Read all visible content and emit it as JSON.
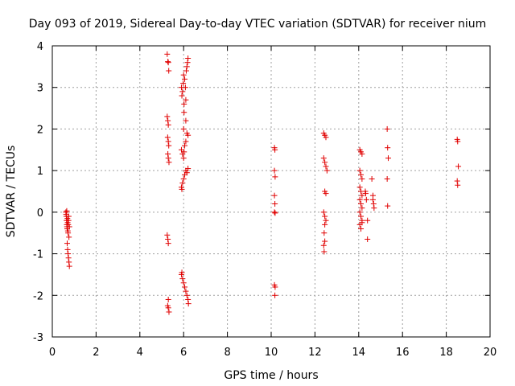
{
  "chart_data": {
    "type": "scatter",
    "title": "Day 093 of 2019, Sidereal Day-to-day VTEC variation (SDTVAR) for receiver nium",
    "xlabel": "GPS time / hours",
    "ylabel": "SDTVAR / TECUs",
    "xlim": [
      0,
      20
    ],
    "ylim": [
      -3,
      4
    ],
    "xticks": [
      0,
      2,
      4,
      6,
      8,
      10,
      12,
      14,
      16,
      18,
      20
    ],
    "yticks": [
      -3,
      -2,
      -1,
      0,
      1,
      2,
      3,
      4
    ],
    "xtick_labels": [
      "0",
      "2",
      "4",
      "6",
      "8",
      "10",
      "12",
      "14",
      "16",
      "18",
      "20"
    ],
    "ytick_labels": [
      "-3",
      "-2",
      "-1",
      "0",
      "1",
      "2",
      "3",
      "4"
    ],
    "grid": true,
    "marker": "+",
    "color": "#e00000",
    "series": [
      {
        "name": "SDTVAR",
        "points": [
          [
            0.62,
            0.0
          ],
          [
            0.63,
            -0.05
          ],
          [
            0.64,
            -0.1
          ],
          [
            0.65,
            -0.2
          ],
          [
            0.66,
            -0.3
          ],
          [
            0.67,
            -0.35
          ],
          [
            0.68,
            -0.4
          ],
          [
            0.69,
            -0.15
          ],
          [
            0.7,
            -0.25
          ],
          [
            0.71,
            -0.45
          ],
          [
            0.72,
            -0.5
          ],
          [
            0.73,
            -0.3
          ],
          [
            0.74,
            -0.2
          ],
          [
            0.75,
            -0.1
          ],
          [
            0.76,
            -0.6
          ],
          [
            0.68,
            -0.75
          ],
          [
            0.7,
            -0.9
          ],
          [
            0.72,
            -1.0
          ],
          [
            0.74,
            -1.1
          ],
          [
            0.76,
            -1.2
          ],
          [
            0.78,
            -1.3
          ],
          [
            0.66,
            0.03
          ],
          [
            0.78,
            -0.35
          ],
          [
            5.25,
            3.8
          ],
          [
            5.28,
            3.62
          ],
          [
            5.3,
            3.6
          ],
          [
            5.32,
            3.4
          ],
          [
            5.25,
            2.3
          ],
          [
            5.28,
            2.2
          ],
          [
            5.3,
            2.1
          ],
          [
            5.27,
            1.8
          ],
          [
            5.3,
            1.7
          ],
          [
            5.32,
            1.6
          ],
          [
            5.28,
            1.4
          ],
          [
            5.3,
            1.3
          ],
          [
            5.33,
            1.2
          ],
          [
            5.25,
            -0.55
          ],
          [
            5.28,
            -0.65
          ],
          [
            5.3,
            -0.75
          ],
          [
            5.3,
            -2.1
          ],
          [
            5.27,
            -2.25
          ],
          [
            5.3,
            -2.3
          ],
          [
            5.33,
            -2.4
          ],
          [
            5.9,
            3.0
          ],
          [
            5.92,
            2.8
          ],
          [
            5.95,
            2.9
          ],
          [
            5.98,
            3.1
          ],
          [
            6.0,
            3.3
          ],
          [
            6.02,
            2.6
          ],
          [
            6.05,
            3.2
          ],
          [
            6.08,
            3.0
          ],
          [
            6.1,
            2.7
          ],
          [
            6.12,
            3.4
          ],
          [
            6.15,
            3.5
          ],
          [
            6.18,
            3.6
          ],
          [
            6.2,
            3.7
          ],
          [
            6.02,
            2.4
          ],
          [
            6.0,
            2.0
          ],
          [
            6.1,
            2.2
          ],
          [
            5.9,
            1.5
          ],
          [
            5.95,
            1.4
          ],
          [
            6.0,
            1.3
          ],
          [
            6.05,
            1.6
          ],
          [
            6.1,
            1.7
          ],
          [
            6.15,
            1.9
          ],
          [
            6.2,
            1.85
          ],
          [
            6.02,
            1.45
          ],
          [
            5.9,
            0.6
          ],
          [
            5.95,
            0.7
          ],
          [
            6.0,
            0.8
          ],
          [
            6.05,
            0.9
          ],
          [
            6.1,
            1.0
          ],
          [
            6.15,
            0.95
          ],
          [
            5.92,
            0.55
          ],
          [
            6.2,
            1.05
          ],
          [
            5.9,
            -1.5
          ],
          [
            5.95,
            -1.6
          ],
          [
            6.0,
            -1.7
          ],
          [
            6.05,
            -1.8
          ],
          [
            6.1,
            -1.9
          ],
          [
            6.15,
            -2.0
          ],
          [
            6.2,
            -2.1
          ],
          [
            6.22,
            -2.2
          ],
          [
            5.92,
            -1.45
          ],
          [
            10.15,
            1.55
          ],
          [
            10.17,
            1.5
          ],
          [
            10.15,
            1.0
          ],
          [
            10.18,
            0.85
          ],
          [
            10.15,
            0.4
          ],
          [
            10.17,
            0.2
          ],
          [
            10.15,
            0.0
          ],
          [
            10.18,
            -0.02
          ],
          [
            10.15,
            -1.75
          ],
          [
            10.18,
            -1.8
          ],
          [
            10.17,
            -2.0
          ],
          [
            12.4,
            1.9
          ],
          [
            12.45,
            1.85
          ],
          [
            12.5,
            1.8
          ],
          [
            12.4,
            1.3
          ],
          [
            12.45,
            1.2
          ],
          [
            12.5,
            1.1
          ],
          [
            12.55,
            1.0
          ],
          [
            12.45,
            0.5
          ],
          [
            12.5,
            0.45
          ],
          [
            12.4,
            0.0
          ],
          [
            12.45,
            -0.1
          ],
          [
            12.5,
            -0.2
          ],
          [
            12.45,
            -0.3
          ],
          [
            12.42,
            -0.5
          ],
          [
            12.45,
            -0.7
          ],
          [
            12.4,
            -0.8
          ],
          [
            12.42,
            -0.95
          ],
          [
            14.05,
            1.5
          ],
          [
            14.1,
            1.45
          ],
          [
            14.15,
            1.4
          ],
          [
            14.05,
            1.0
          ],
          [
            14.1,
            0.9
          ],
          [
            14.15,
            0.8
          ],
          [
            14.05,
            0.6
          ],
          [
            14.1,
            0.5
          ],
          [
            14.15,
            0.4
          ],
          [
            14.05,
            0.3
          ],
          [
            14.1,
            0.2
          ],
          [
            14.15,
            0.1
          ],
          [
            14.05,
            0.0
          ],
          [
            14.1,
            -0.1
          ],
          [
            14.15,
            -0.2
          ],
          [
            14.05,
            -0.3
          ],
          [
            14.1,
            -0.4
          ],
          [
            14.15,
            -0.25
          ],
          [
            14.3,
            0.5
          ],
          [
            14.35,
            0.3
          ],
          [
            14.4,
            -0.2
          ],
          [
            14.4,
            -0.65
          ],
          [
            14.6,
            0.8
          ],
          [
            14.65,
            0.4
          ],
          [
            14.65,
            0.3
          ],
          [
            14.7,
            0.1
          ],
          [
            14.68,
            0.2
          ],
          [
            14.32,
            0.45
          ],
          [
            15.3,
            2.0
          ],
          [
            15.32,
            1.55
          ],
          [
            15.35,
            1.3
          ],
          [
            15.3,
            0.8
          ],
          [
            15.32,
            0.15
          ],
          [
            18.5,
            1.75
          ],
          [
            18.52,
            1.7
          ],
          [
            18.55,
            1.1
          ],
          [
            18.5,
            0.75
          ],
          [
            18.52,
            0.65
          ]
        ]
      }
    ]
  }
}
